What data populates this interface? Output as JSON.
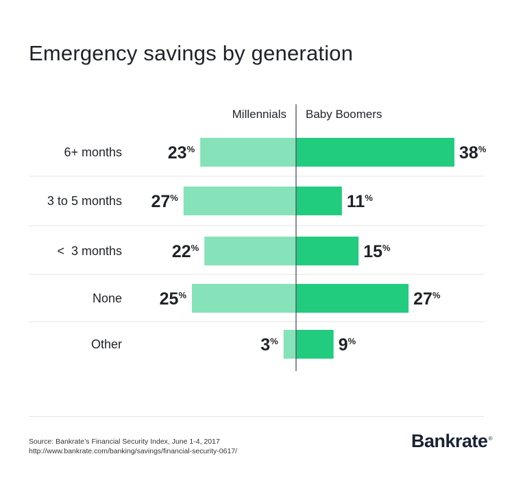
{
  "chart_data": {
    "type": "bar",
    "orientation": "diverging-horizontal",
    "title": "Emergency savings by generation",
    "categories": [
      "6+ months",
      "3 to 5 months",
      "<  3 months",
      "None",
      "Other"
    ],
    "series": [
      {
        "name": "Millennials",
        "values": [
          23,
          27,
          22,
          25,
          3
        ],
        "color": "#86e2b9"
      },
      {
        "name": "Baby Boomers",
        "values": [
          38,
          11,
          15,
          27,
          9
        ],
        "color": "#22cc7f"
      }
    ],
    "value_suffix": "%",
    "xlabel": "",
    "ylabel": ""
  },
  "footer": {
    "source_line1": "Source: Bankrate’s Financial Security Index, June 1-4, 2017",
    "source_line2": "http://www.bankrate.com/banking/savings/financial-security-0617/",
    "logo_text": "Bankrate",
    "logo_mark": "®"
  }
}
